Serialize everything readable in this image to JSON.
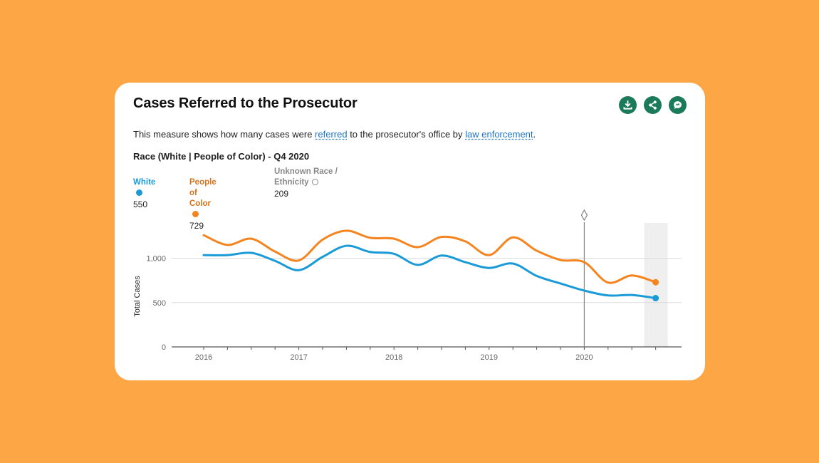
{
  "card": {
    "title": "Cases Referred to the Prosecutor",
    "description": {
      "before": "This measure shows how many cases were ",
      "link1": "referred",
      "middle": " to the prosecutor's office by ",
      "link2": "law enforcement",
      "after": "."
    },
    "subtitle": "Race (White | People of Color) - Q4 2020",
    "actions": [
      {
        "name": "download",
        "icon": "download-icon"
      },
      {
        "name": "share",
        "icon": "share-icon"
      },
      {
        "name": "feedback",
        "icon": "chat-bubble-icon"
      }
    ]
  },
  "legend": {
    "items": [
      {
        "label": "White",
        "value": "550",
        "color": "#1a9ad6",
        "active": true
      },
      {
        "label": "People of Color",
        "value": "729",
        "color": "#f5841f",
        "active": true
      },
      {
        "label_line1": "Unknown Race /",
        "label_line2": "Ethnicity",
        "value": "209",
        "color": "#888888",
        "active": false
      }
    ]
  },
  "chart_data": {
    "type": "line",
    "title": "Race (White | People of Color) - Q4 2020",
    "xlabel": "",
    "ylabel": "Total Cases",
    "ylim": [
      0,
      1400
    ],
    "yticks": [
      0,
      500,
      1000
    ],
    "ytick_labels": [
      "0",
      "500",
      "1,000"
    ],
    "xticks": [
      2016,
      2017,
      2018,
      2019,
      2020
    ],
    "xtick_labels": [
      "2016",
      "2017",
      "2018",
      "2019",
      "2020"
    ],
    "x": [
      "2016 Q1",
      "2016 Q2",
      "2016 Q3",
      "2016 Q4",
      "2017 Q1",
      "2017 Q2",
      "2017 Q3",
      "2017 Q4",
      "2018 Q1",
      "2018 Q2",
      "2018 Q3",
      "2018 Q4",
      "2019 Q1",
      "2019 Q2",
      "2019 Q3",
      "2019 Q4",
      "2020 Q1",
      "2020 Q2",
      "2020 Q3",
      "2020 Q4"
    ],
    "grid": true,
    "marker_line": {
      "x": "2020 Q1",
      "symbol": "diamond"
    },
    "highlight": {
      "x": "2020 Q4"
    },
    "series": [
      {
        "name": "White",
        "color": "#1a9ad6",
        "values": [
          1035,
          1035,
          1060,
          970,
          865,
          1015,
          1140,
          1070,
          1050,
          925,
          1030,
          955,
          890,
          940,
          800,
          715,
          635,
          580,
          585,
          550
        ]
      },
      {
        "name": "People of Color",
        "color": "#f5841f",
        "values": [
          1260,
          1150,
          1220,
          1075,
          975,
          1210,
          1310,
          1230,
          1220,
          1125,
          1240,
          1190,
          1035,
          1235,
          1085,
          980,
          955,
          725,
          805,
          729
        ]
      }
    ]
  }
}
